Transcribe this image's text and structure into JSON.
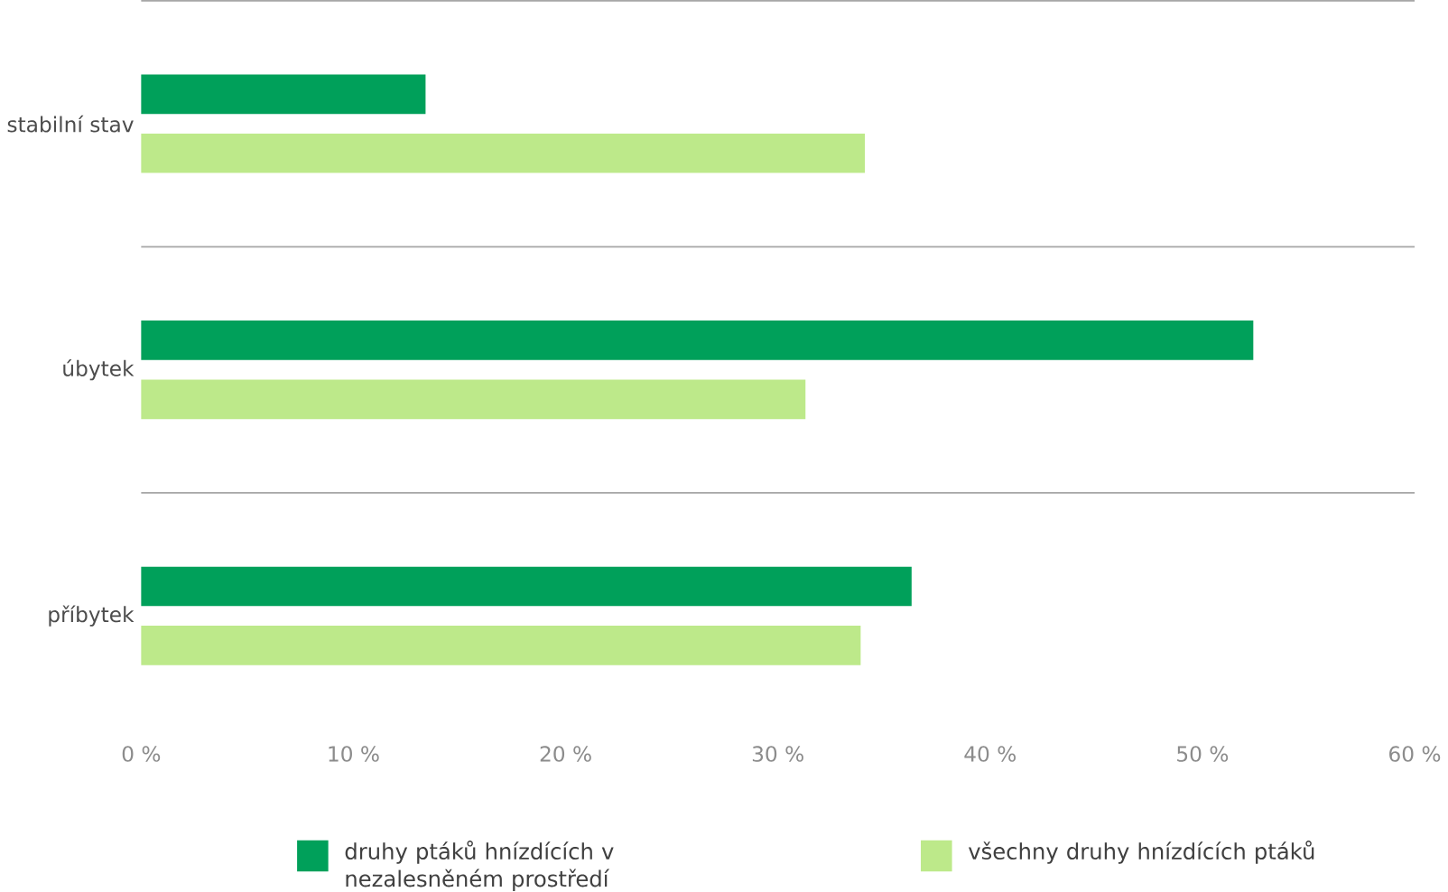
{
  "chart_data": {
    "type": "bar",
    "orientation": "horizontal",
    "categories": [
      "stabilní stav",
      "úbytek",
      "příbytek"
    ],
    "series": [
      {
        "name": "druhy ptáků hnízdících v nezalesněném prostředí",
        "color": "#00a05a",
        "values": [
          13.4,
          52.4,
          36.3
        ]
      },
      {
        "name": "všechny druhy hnízdících ptáků",
        "color": "#bde98a",
        "values": [
          34.1,
          31.3,
          33.9
        ]
      }
    ],
    "xlim": [
      0,
      60
    ],
    "xticks": [
      {
        "value": 0,
        "label": "0 %"
      },
      {
        "value": 10,
        "label": "10 %"
      },
      {
        "value": 20,
        "label": "20 %"
      },
      {
        "value": 30,
        "label": "30 %"
      },
      {
        "value": 40,
        "label": "40 %"
      },
      {
        "value": 50,
        "label": "50 %"
      },
      {
        "value": 60,
        "label": "60 %"
      }
    ],
    "grid": "y",
    "legend": "bottom"
  }
}
